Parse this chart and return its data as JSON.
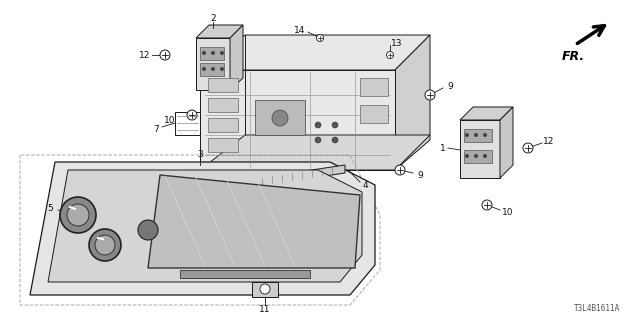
{
  "background_color": "#ffffff",
  "watermark": "T3L4B1611A",
  "line_color": "#1a1a1a",
  "text_color": "#111111",
  "fs_label": 6.5,
  "fs_small": 5.5
}
